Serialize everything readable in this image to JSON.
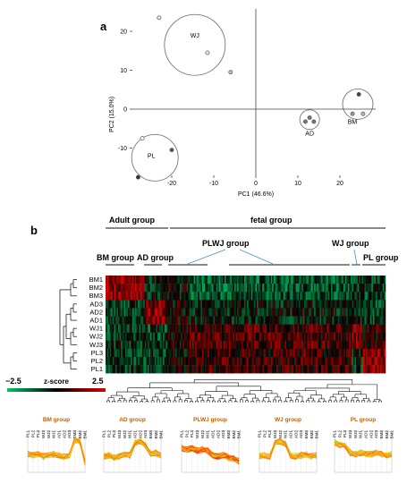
{
  "panel_a": {
    "letter": "a",
    "chart_data": {
      "type": "scatter",
      "xlabel": "PC1 (46.6%)",
      "ylabel": "PC2 (15.0%)",
      "xlim": [
        -30,
        30
      ],
      "ylim": [
        -15,
        27
      ],
      "xticks": [
        "-20",
        "-10",
        "0",
        "10",
        "20"
      ],
      "yticks": [
        "20",
        "10",
        "0",
        "-10"
      ],
      "xtick_values": [
        -20,
        -10,
        0,
        10,
        20
      ],
      "ytick_values": [
        20,
        10,
        0,
        -10
      ],
      "grid": false,
      "groups": [
        {
          "label": "WJ",
          "points": [
            {
              "x": -23,
              "y": 23.5
            },
            {
              "x": -11.5,
              "y": 14.5
            },
            {
              "x": -6,
              "y": 9.5
            }
          ],
          "fills": [
            "#e6e6e6",
            "#e6e6e6",
            "#bdbdbd"
          ]
        },
        {
          "label": "PL",
          "points": [
            {
              "x": -27,
              "y": -7.5
            },
            {
              "x": -20,
              "y": -10.5
            },
            {
              "x": -28,
              "y": -17.5
            }
          ],
          "fills": [
            "#ffffff",
            "#555555",
            "#333333"
          ]
        },
        {
          "label": "AD",
          "points": [
            {
              "x": 11.8,
              "y": -3.2
            },
            {
              "x": 12.8,
              "y": -2.2
            },
            {
              "x": 13.8,
              "y": -3.2
            }
          ],
          "fills": [
            "#777777",
            "#777777",
            "#777777"
          ]
        },
        {
          "label": "BM",
          "points": [
            {
              "x": 23,
              "y": -1.2
            },
            {
              "x": 24.5,
              "y": 3.8
            },
            {
              "x": 25.5,
              "y": -1.2
            }
          ],
          "fills": [
            "#999999",
            "#444444",
            "#bbbbbb"
          ]
        }
      ]
    }
  },
  "panel_b": {
    "letter": "b",
    "top_groups": {
      "adult": "Adult group",
      "fetal": "fetal group"
    },
    "sub_groups": {
      "bm": "BM group",
      "ad": "AD group",
      "plwj": "PLWJ group",
      "wj": "WJ group",
      "pl": "PL group"
    },
    "chart_data": {
      "type": "heatmap",
      "rows": [
        "BM1",
        "BM2",
        "BM3",
        "AD3",
        "AD2",
        "AD1",
        "WJ1",
        "WJ2",
        "WJ3",
        "PL3",
        "PL2",
        "PL1"
      ],
      "color_scale": {
        "low": "#00c864",
        "mid": "#000000",
        "high": "#e00000"
      },
      "colorbar": {
        "label": "z-score",
        "min_label": "−2.5",
        "max_label": "2.5",
        "min": -2.5,
        "max": 2.5
      }
    }
  },
  "trend_panels": {
    "chart_data": {
      "type": "line",
      "categories": [
        "PL1",
        "PL2",
        "PL3",
        "WJ3",
        "WJ2",
        "WJ1",
        "AD1",
        "AD2",
        "AD3",
        "BM3",
        "BM2",
        "BM1"
      ],
      "panels": [
        {
          "title": "BM group",
          "profile": [
            -0.2,
            -0.3,
            -0.2,
            -0.4,
            -0.3,
            -0.2,
            -0.3,
            -0.4,
            -0.3,
            1.0,
            0.9,
            -0.9
          ]
        },
        {
          "title": "AD group",
          "profile": [
            -0.4,
            -0.3,
            -0.5,
            -0.4,
            -0.2,
            -0.3,
            0.8,
            0.9,
            0.6,
            -0.2,
            -0.1,
            -0.3
          ]
        },
        {
          "title": "PLWJ group",
          "profile": [
            0.3,
            0.2,
            0.3,
            0.1,
            0.2,
            0.1,
            -0.3,
            -0.4,
            -0.3,
            -0.5,
            -0.6,
            -0.8
          ]
        },
        {
          "title": "WJ group",
          "profile": [
            -0.4,
            -0.3,
            -0.4,
            0.8,
            0.9,
            0.7,
            -0.3,
            -0.4,
            -0.3,
            -0.2,
            -0.4,
            -0.3
          ]
        },
        {
          "title": "PL group",
          "profile": [
            0.8,
            0.6,
            0.5,
            -0.1,
            -0.2,
            -0.1,
            -0.2,
            -0.2,
            -0.1,
            -0.2,
            -0.3,
            -0.2
          ]
        }
      ]
    }
  }
}
